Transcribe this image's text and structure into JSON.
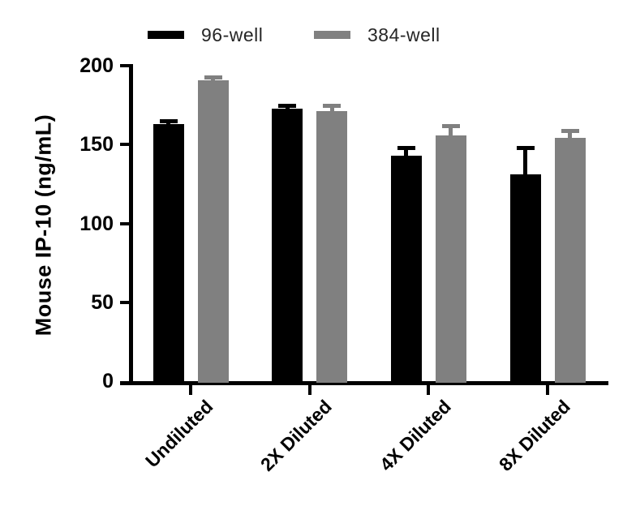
{
  "legend": {
    "items": [
      {
        "label": "96-well",
        "color": "#000000"
      },
      {
        "label": "384-well",
        "color": "#808080"
      }
    ]
  },
  "chart_data": {
    "type": "bar",
    "title": "",
    "xlabel": "",
    "ylabel": "Mouse IP-10 (ng/mL)",
    "categories": [
      "Undiluted",
      "2X Diluted",
      "4X Diluted",
      "8X Diluted"
    ],
    "series": [
      {
        "name": "96-well",
        "color": "#000000",
        "values": [
          163,
          173,
          143,
          131
        ],
        "errors_plus": [
          3,
          3,
          6,
          18
        ]
      },
      {
        "name": "384-well",
        "color": "#808080",
        "values": [
          191,
          171,
          156,
          154
        ],
        "errors_plus": [
          3,
          5,
          7,
          6
        ]
      }
    ],
    "ylim": [
      0,
      200
    ],
    "ytick_interval": 50,
    "ytick_labels": [
      "0",
      "50",
      "100",
      "150",
      "200"
    ],
    "grid": false,
    "legend_position": "top",
    "error_bars": "sd_upper_only"
  }
}
